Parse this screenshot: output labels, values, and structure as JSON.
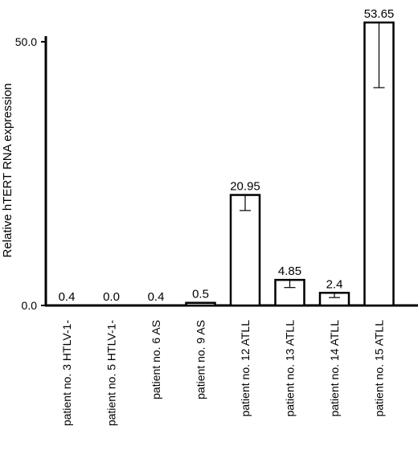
{
  "chart_data": {
    "type": "bar",
    "title": "",
    "xlabel": "",
    "ylabel": "Relative hTERT RNA expression",
    "ylim": [
      0,
      53.65
    ],
    "yticks": [
      {
        "value": 0,
        "label": "0.0"
      },
      {
        "value": 50,
        "label": "50.0"
      }
    ],
    "categories": [
      "patient no. 3 HTLV-1-",
      "patient no. 5 HTLV-1-",
      "patient no. 6 AS",
      "patient no. 9 AS",
      "patient no. 12 ATLL",
      "patient no. 13 ATLL",
      "patient no. 14 ATLL",
      "patient no. 15 ATLL"
    ],
    "values": [
      0.4,
      0.0,
      0.4,
      0.5,
      20.95,
      4.85,
      2.4,
      53.65
    ],
    "value_labels": [
      "0.4",
      "0.0",
      "0.4",
      "0.5",
      "20.95",
      "4.85",
      "2.4",
      "53.65"
    ],
    "error_low": [
      null,
      null,
      null,
      null,
      18.0,
      3.4,
      1.5,
      41.3
    ],
    "error_high": [
      null,
      null,
      null,
      null,
      21.0,
      5.0,
      2.4,
      53.65
    ],
    "grid": false,
    "legend": "none"
  }
}
